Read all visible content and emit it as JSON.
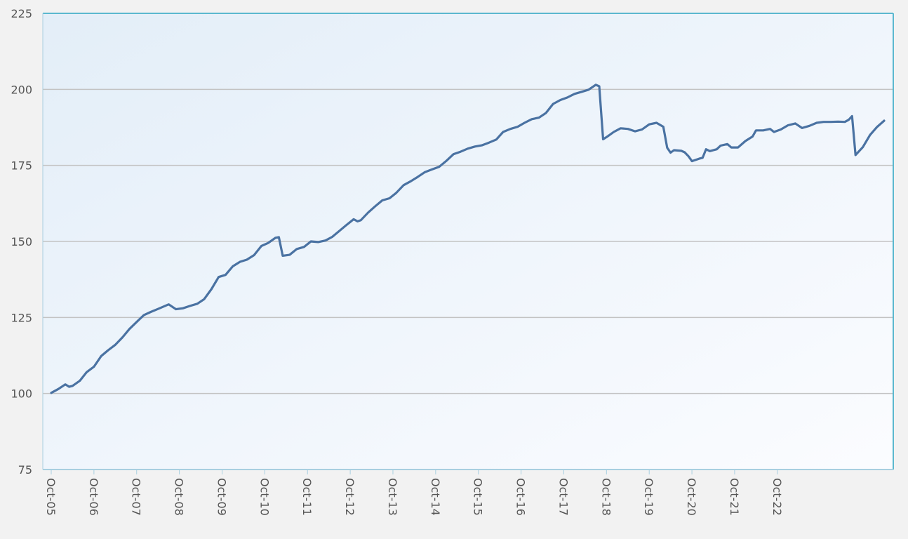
{
  "chart_data": {
    "type": "line",
    "title": "",
    "xlabel": "",
    "ylabel": "",
    "ylim": [
      75,
      225
    ],
    "y_ticks": [
      "75",
      "100",
      "125",
      "150",
      "175",
      "200",
      "225"
    ],
    "y_tick_values": [
      75,
      100,
      125,
      150,
      175,
      200,
      225
    ],
    "x_tick_labels": [
      "Oct-05",
      "Oct-06",
      "Oct-07",
      "Oct-08",
      "Oct-09",
      "Oct-10",
      "Oct-11",
      "Oct-12",
      "Oct-13",
      "Oct-14",
      "Oct-15",
      "Oct-16",
      "Oct-17",
      "Oct-18",
      "Oct-19",
      "Oct-20",
      "Oct-21",
      "Oct-22"
    ],
    "grid": true,
    "legend": "none",
    "colors": {
      "line": "#4a72a2",
      "frame": "#5bb8cf",
      "plot_bg_start": "#e3eef8",
      "plot_bg_end": "#fbfcff",
      "grid": "#c3c3c3",
      "page_bg": "#f2f2f2"
    },
    "series": [
      {
        "values": [
          [
            2005.75,
            100.2
          ],
          [
            2005.92,
            101.5
          ],
          [
            2006.08,
            103.0
          ],
          [
            2006.17,
            102.2
          ],
          [
            2006.25,
            102.5
          ],
          [
            2006.42,
            104.2
          ],
          [
            2006.58,
            107.0
          ],
          [
            2006.75,
            108.8
          ],
          [
            2006.92,
            112.3
          ],
          [
            2007.08,
            114.2
          ],
          [
            2007.25,
            116.0
          ],
          [
            2007.42,
            118.5
          ],
          [
            2007.58,
            121.2
          ],
          [
            2007.75,
            123.5
          ],
          [
            2007.92,
            125.8
          ],
          [
            2008.08,
            126.8
          ],
          [
            2008.25,
            127.8
          ],
          [
            2008.5,
            129.3
          ],
          [
            2008.67,
            127.7
          ],
          [
            2008.83,
            128.0
          ],
          [
            2009.0,
            128.8
          ],
          [
            2009.17,
            129.5
          ],
          [
            2009.33,
            131.0
          ],
          [
            2009.5,
            134.3
          ],
          [
            2009.67,
            138.3
          ],
          [
            2009.83,
            139.0
          ],
          [
            2010.0,
            141.8
          ],
          [
            2010.17,
            143.3
          ],
          [
            2010.33,
            144.0
          ],
          [
            2010.5,
            145.5
          ],
          [
            2010.67,
            148.5
          ],
          [
            2010.83,
            149.5
          ],
          [
            2011.0,
            151.2
          ],
          [
            2011.08,
            151.4
          ],
          [
            2011.17,
            145.3
          ],
          [
            2011.33,
            145.6
          ],
          [
            2011.5,
            147.5
          ],
          [
            2011.67,
            148.2
          ],
          [
            2011.83,
            150.0
          ],
          [
            2012.0,
            149.8
          ],
          [
            2012.17,
            150.3
          ],
          [
            2012.33,
            151.5
          ],
          [
            2012.5,
            153.5
          ],
          [
            2012.67,
            155.5
          ],
          [
            2012.83,
            157.3
          ],
          [
            2012.92,
            156.6
          ],
          [
            2013.0,
            157.0
          ],
          [
            2013.17,
            159.5
          ],
          [
            2013.33,
            161.5
          ],
          [
            2013.5,
            163.5
          ],
          [
            2013.67,
            164.2
          ],
          [
            2013.83,
            166.0
          ],
          [
            2014.0,
            168.5
          ],
          [
            2014.17,
            169.8
          ],
          [
            2014.33,
            171.2
          ],
          [
            2014.5,
            172.8
          ],
          [
            2014.67,
            173.7
          ],
          [
            2014.83,
            174.5
          ],
          [
            2015.0,
            176.5
          ],
          [
            2015.17,
            178.7
          ],
          [
            2015.33,
            179.5
          ],
          [
            2015.5,
            180.5
          ],
          [
            2015.67,
            181.2
          ],
          [
            2015.83,
            181.6
          ],
          [
            2016.0,
            182.5
          ],
          [
            2016.17,
            183.5
          ],
          [
            2016.33,
            186.0
          ],
          [
            2016.5,
            187.0
          ],
          [
            2016.67,
            187.7
          ],
          [
            2016.83,
            189.0
          ],
          [
            2017.0,
            190.2
          ],
          [
            2017.17,
            190.7
          ],
          [
            2017.33,
            192.2
          ],
          [
            2017.5,
            195.2
          ],
          [
            2017.67,
            196.5
          ],
          [
            2017.83,
            197.3
          ],
          [
            2018.0,
            198.5
          ],
          [
            2018.17,
            199.2
          ],
          [
            2018.33,
            199.9
          ],
          [
            2018.5,
            201.5
          ],
          [
            2018.58,
            201.0
          ],
          [
            2018.67,
            183.6
          ],
          [
            2018.75,
            184.3
          ],
          [
            2018.92,
            186.0
          ],
          [
            2019.08,
            187.2
          ],
          [
            2019.25,
            187.0
          ],
          [
            2019.42,
            186.2
          ],
          [
            2019.58,
            186.8
          ],
          [
            2019.75,
            188.5
          ],
          [
            2019.92,
            189.0
          ],
          [
            2020.08,
            187.7
          ],
          [
            2020.17,
            180.8
          ],
          [
            2020.25,
            179.2
          ],
          [
            2020.33,
            180.0
          ],
          [
            2020.5,
            179.8
          ],
          [
            2020.58,
            179.3
          ],
          [
            2020.67,
            178.0
          ],
          [
            2020.75,
            176.4
          ],
          [
            2020.92,
            177.2
          ],
          [
            2021.0,
            177.5
          ],
          [
            2021.08,
            180.3
          ],
          [
            2021.17,
            179.7
          ],
          [
            2021.33,
            180.3
          ],
          [
            2021.42,
            181.5
          ],
          [
            2021.58,
            182.0
          ],
          [
            2021.67,
            180.9
          ],
          [
            2021.83,
            180.9
          ],
          [
            2022.0,
            183.0
          ],
          [
            2022.17,
            184.5
          ],
          [
            2022.25,
            186.5
          ],
          [
            2022.42,
            186.5
          ],
          [
            2022.58,
            187.0
          ],
          [
            2022.67,
            186.0
          ],
          [
            2022.83,
            186.8
          ],
          [
            2023.0,
            188.2
          ],
          [
            2023.17,
            188.8
          ],
          [
            2023.33,
            187.3
          ],
          [
            2023.5,
            188.0
          ],
          [
            2023.67,
            189.0
          ],
          [
            2023.83,
            189.3
          ],
          [
            2024.0,
            189.3
          ],
          [
            2024.17,
            189.4
          ],
          [
            2024.33,
            189.3
          ],
          [
            2024.42,
            190.0
          ],
          [
            2024.5,
            191.2
          ],
          [
            2024.58,
            178.4
          ],
          [
            2024.75,
            181.0
          ],
          [
            2024.92,
            185.0
          ],
          [
            2025.08,
            187.6
          ],
          [
            2025.25,
            189.7
          ]
        ]
      }
    ]
  }
}
